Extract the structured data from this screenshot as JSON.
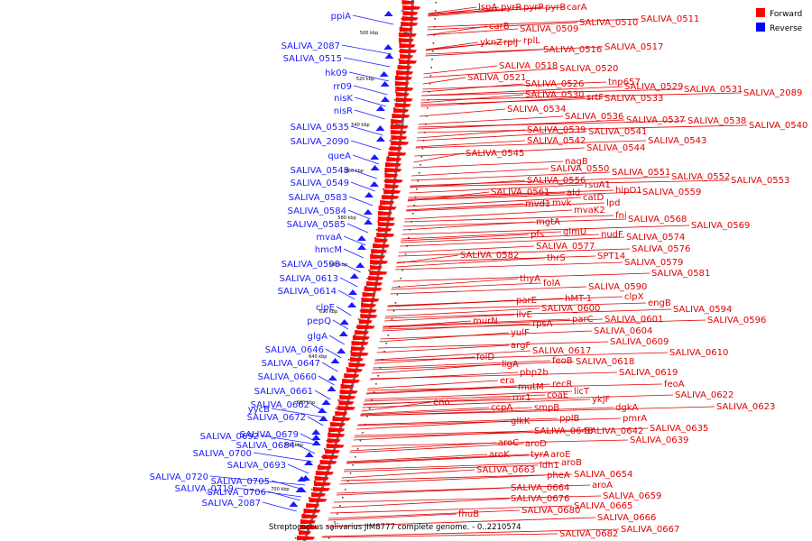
{
  "caption": "Streptococcus salivarius JIM8777 complete genome. - 0..2210574",
  "legend": [
    {
      "label": "Forward",
      "color": "#ff0000"
    },
    {
      "label": "Reverse",
      "color": "#0000ff"
    }
  ],
  "ticks": [
    "500 kbp",
    "520 kbp",
    "540 kbp",
    "560 kbp",
    "580 kbp",
    "600 kbp",
    "620 kbp",
    "640 kbp",
    "660 kbp",
    "680 kbp",
    "700 kbp"
  ],
  "reverse_labels": [
    "ppiA",
    "SALIVA_2087",
    "SALIVA_0515",
    "hk09",
    "rr09",
    "nisK",
    "nisR",
    "SALIVA_0535",
    "SALIVA_2090",
    "queA",
    "SALIVA_0548",
    "SALIVA_0549",
    "SALIVA_0583",
    "SALIVA_0584",
    "SALIVA_0585",
    "mvaA",
    "hmcM",
    "SALIVA_0598",
    "SALIVA_0613",
    "SALIVA_0614",
    "clpE",
    "pepQ",
    "glgA",
    "SALIVA_0646",
    "SALIVA_0647",
    "SALIVA_0660",
    "SALIVA_0661",
    "yycB",
    "SALIVA_0662",
    "SALIVA_0672",
    "SALIVA_0679",
    "SALIVA_0692",
    "SALIVA_0684",
    "SALIVA_0700",
    "SALIVA_0693",
    "SALIVA_0720",
    "SALIVA_0705",
    "SALIVA_0719",
    "SALIVA_0706",
    "SALIVA_2087"
  ],
  "forward_labels": [
    "lspA",
    "pyrR",
    "pyrP",
    "pyrB",
    "carA",
    "SALIVA_0510",
    "SALIVA_0511",
    "carB",
    "SALIVA_0509",
    "yknZ",
    "rplJ",
    "rplL",
    "SALIVA_0516",
    "SALIVA_0517",
    "SALIVA_0518",
    "SALIVA_0520",
    "SALIVA_0521",
    "tnp657",
    "SALIVA_0526",
    "SALIVA_0529",
    "SALIVA_0531",
    "SALIVA_2089",
    "SALIVA_0530",
    "srtF",
    "SALIVA_0533",
    "SALIVA_0534",
    "SALIVA_0536",
    "SALIVA_0537",
    "SALIVA_0538",
    "SALIVA_0540",
    "SALIVA_0539",
    "SALIVA_0541",
    "SALIVA_0542",
    "SALIVA_0543",
    "SALIVA_0544",
    "SALIVA_0545",
    "nagB",
    "SALIVA_0550",
    "SALIVA_0551",
    "SALIVA_0552",
    "SALIVA_0553",
    "SALIVA_0556",
    "rsuA1",
    "SALIVA_0561",
    "ald",
    "hipO1",
    "SALIVA_0559",
    "catD",
    "mvd1",
    "mvk",
    "lpd",
    "mvaK2",
    "fni",
    "SALIVA_0568",
    "mgtA",
    "SALIVA_0569",
    "pfs",
    "glmU",
    "nudF",
    "SALIVA_0574",
    "SALIVA_0577",
    "SALIVA_0576",
    "SALIVA_0582",
    "thrS",
    "SPT14",
    "SALIVA_0579",
    "SALIVA_0581",
    "thyA",
    "folA",
    "SALIVA_0590",
    "hMT-1",
    "clpX",
    "parE",
    "engB",
    "SALIVA_0600",
    "SALIVA_0594",
    "ilvE",
    "parC",
    "SALIVA_0601",
    "SALIVA_0596",
    "murN",
    "rpsA",
    "SALIVA_0604",
    "yulF",
    "SALIVA_0609",
    "argF",
    "SALIVA_0610",
    "SALIVA_0617",
    "folD",
    "feoB",
    "SALIVA_0618",
    "ligA",
    "SALIVA_0619",
    "pbp2b",
    "era",
    "recR",
    "feoA",
    "mutM",
    "licT",
    "SALIVA_0622",
    "coaE",
    "rnr1",
    "ykjF",
    "SALIVA_0623",
    "ccpA",
    "smpB",
    "dgkA",
    "eno",
    "pplB",
    "pmrA",
    "glkK",
    "SALIVA_0648",
    "SALIVA_0642",
    "SALIVA_0635",
    "aroC",
    "aroD",
    "SALIVA_0639",
    "aroK",
    "tyrA",
    "aroE",
    "ldh1",
    "aroB",
    "SALIVA_0663",
    "pheA",
    "SALIVA_0654",
    "SALIVA_0664",
    "aroA",
    "SALIVA_0676",
    "SALIVA_0659",
    "SALIVA_0665",
    "SALIVA_0680",
    "SALIVA_0666",
    "fhuB",
    "SALIVA_0667",
    "SALIVA_0682"
  ]
}
